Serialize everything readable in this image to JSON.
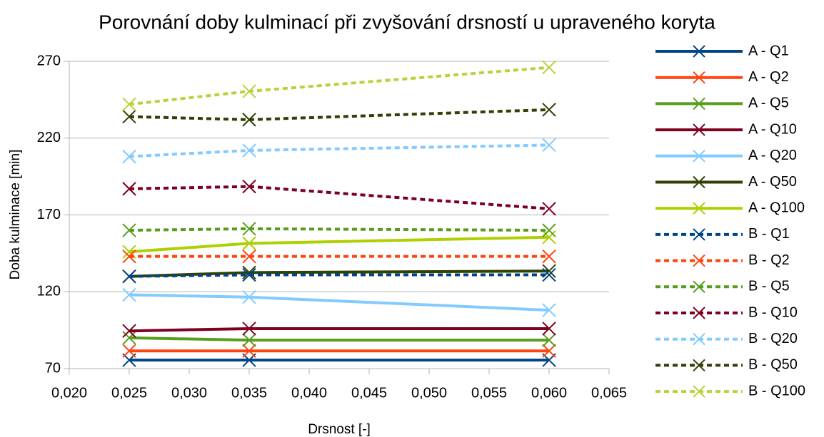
{
  "chart_data": {
    "type": "line",
    "title": "Porovnání doby kulminací při zvyšování drsností u upraveného koryta",
    "x_label": "Drsnost [-]",
    "y_label": "Doba kulminace [min]",
    "x": [
      0.025,
      0.035,
      0.06
    ],
    "xlim": [
      0.02,
      0.065
    ],
    "xticks": [
      {
        "value": 0.02,
        "label": "0,020"
      },
      {
        "value": 0.025,
        "label": "0,025"
      },
      {
        "value": 0.03,
        "label": "0,030"
      },
      {
        "value": 0.035,
        "label": "0,035"
      },
      {
        "value": 0.04,
        "label": "0,040"
      },
      {
        "value": 0.045,
        "label": "0,045"
      },
      {
        "value": 0.05,
        "label": "0,050"
      },
      {
        "value": 0.055,
        "label": "0,055"
      },
      {
        "value": 0.06,
        "label": "0,060"
      },
      {
        "value": 0.065,
        "label": "0,065"
      }
    ],
    "ylim": [
      70,
      270
    ],
    "yticks": [
      70,
      120,
      170,
      220,
      270
    ],
    "grid": true,
    "legend": "right",
    "series": [
      {
        "name": "A - Q1",
        "color": "#004586",
        "dashed": false,
        "values": [
          75.5,
          75.5,
          75.5
        ]
      },
      {
        "name": "A - Q2",
        "color": "#ff420e",
        "dashed": false,
        "values": [
          81.5,
          81.5,
          81.5
        ]
      },
      {
        "name": "A - Q5",
        "color": "#579d1c",
        "dashed": false,
        "values": [
          90,
          88.5,
          88.5
        ]
      },
      {
        "name": "A - Q10",
        "color": "#7e0021",
        "dashed": false,
        "values": [
          94.5,
          96,
          96
        ]
      },
      {
        "name": "A - Q20",
        "color": "#83caff",
        "dashed": false,
        "values": [
          118,
          116.5,
          108
        ]
      },
      {
        "name": "A - Q50",
        "color": "#314004",
        "dashed": false,
        "values": [
          130,
          132.5,
          133.5
        ]
      },
      {
        "name": "A - Q100",
        "color": "#aecf00",
        "dashed": false,
        "values": [
          146,
          151.5,
          155.5
        ]
      },
      {
        "name": "B - Q1",
        "color": "#004586",
        "dashed": true,
        "values": [
          130,
          131,
          131
        ]
      },
      {
        "name": "B - Q2",
        "color": "#ff420e",
        "dashed": true,
        "values": [
          143,
          143,
          143
        ]
      },
      {
        "name": "B - Q5",
        "color": "#579d1c",
        "dashed": true,
        "values": [
          160,
          161,
          160
        ]
      },
      {
        "name": "B - Q10",
        "color": "#7e0021",
        "dashed": true,
        "values": [
          187,
          188.5,
          174
        ]
      },
      {
        "name": "B - Q20",
        "color": "#83caff",
        "dashed": true,
        "values": [
          208,
          212,
          215.5
        ]
      },
      {
        "name": "B - Q50",
        "color": "#314004",
        "dashed": true,
        "values": [
          234,
          232,
          238.5
        ]
      },
      {
        "name": "B - Q100",
        "color": "#b6d43a",
        "dashed": true,
        "values": [
          242,
          250.5,
          266
        ]
      }
    ]
  }
}
